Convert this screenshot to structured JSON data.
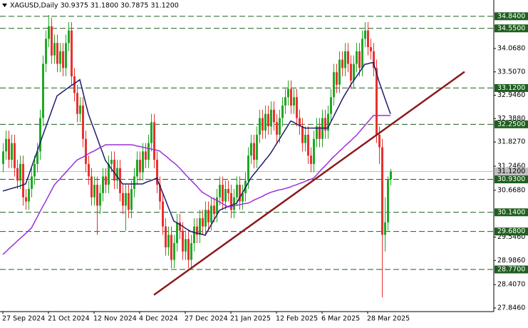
{
  "chart_data": {
    "type": "candlestick",
    "title": "XAGUSD,Daily  30.9375 31.1800 30.7875 31.1200",
    "categories": [
      "27 Sep 2024",
      null,
      null,
      null,
      null,
      null,
      null,
      null,
      null,
      null,
      null,
      null,
      null,
      null,
      null,
      null,
      "21 Oct 2024",
      null,
      null,
      null,
      null,
      null,
      null,
      null,
      null,
      null,
      null,
      null,
      null,
      null,
      null,
      null,
      "12 Nov 2024",
      null,
      null,
      null,
      null,
      null,
      null,
      null,
      null,
      null,
      null,
      null,
      null,
      null,
      null,
      null,
      "4 Dec 2024",
      null,
      null,
      null,
      null,
      null,
      null,
      null,
      null,
      null,
      null,
      null,
      null,
      null,
      null,
      null,
      "27 Dec 2024",
      null,
      null,
      null,
      null,
      null,
      null,
      null,
      null,
      null,
      null,
      null,
      null,
      null,
      null,
      null,
      "21 Jan 2025",
      null,
      null,
      null,
      null,
      null,
      null,
      null,
      null,
      null,
      null,
      null,
      null,
      null,
      null,
      null,
      "12 Feb 2025",
      null,
      null,
      null,
      null,
      null,
      null,
      null,
      null,
      null,
      null,
      null,
      null,
      null,
      null,
      null,
      "6 Mar 2025",
      null,
      null,
      null,
      null,
      null,
      null,
      null,
      null,
      null,
      null,
      null,
      null,
      null,
      null,
      null,
      "28 Mar 2025",
      null,
      null,
      null,
      null,
      null,
      null,
      null,
      null
    ],
    "open": [
      31.3,
      31.6,
      31.9,
      31.4,
      31.8,
      31.2,
      30.9,
      31.3,
      30.5,
      30.4,
      30.7,
      31,
      31.3,
      31.6,
      32.4,
      33.7,
      34.3,
      34.6,
      33.9,
      34.2,
      33.7,
      34,
      33.6,
      34.2,
      34.5,
      33.4,
      33,
      32.5,
      32.7,
      31.9,
      31.3,
      31,
      30.5,
      30.8,
      30.3,
      30.6,
      31,
      30.8,
      31.3,
      31.4,
      30.9,
      31.2,
      30.6,
      30.3,
      30.6,
      30.2,
      30.7,
      31,
      31.4,
      31.1,
      31.6,
      31.4,
      31.8,
      32.3,
      31.4,
      30.8,
      30.4,
      29.8,
      29.3,
      29.6,
      29,
      29.4,
      29.9,
      29.7,
      29.2,
      29.5,
      29,
      29.4,
      29.8,
      29.6,
      30,
      29.8,
      30.2,
      29.9,
      30.3,
      30.1,
      30.5,
      30.8,
      30.4,
      30.7,
      30.6,
      30.2,
      30.5,
      30.8,
      30.4,
      30.6,
      30.9,
      31.5,
      31.8,
      31.4,
      32,
      32.4,
      32.1,
      32.5,
      32.2,
      32.6,
      32.3,
      32,
      32.4,
      32.7,
      32.9,
      33.1,
      32.7,
      32.9,
      32.4,
      32.2,
      31.8,
      32,
      31.5,
      31.3,
      31.9,
      32.2,
      31.9,
      32.4,
      32.1,
      32.5,
      32.9,
      33.5,
      33.2,
      33.8,
      33.6,
      34,
      33.7,
      33.3,
      33.7,
      34,
      33.6,
      34.3,
      34.5,
      34.1,
      34,
      33.6,
      32,
      31.7,
      29.6,
      29.9,
      30.9375
    ],
    "high": [
      31.8,
      32.1,
      32.1,
      32,
      32,
      31.4,
      31.5,
      31.5,
      30.7,
      30.9,
      31.2,
      31.5,
      31.8,
      32.6,
      33.9,
      34.5,
      34.87,
      34.8,
      34.4,
      34.4,
      34.2,
      34.2,
      34.4,
      34.7,
      34.7,
      33.6,
      33.2,
      32.9,
      32.9,
      32.1,
      31.5,
      31.2,
      31,
      31,
      30.8,
      31.2,
      31.2,
      31.5,
      31.6,
      31.6,
      31.4,
      31.4,
      30.8,
      30.8,
      30.8,
      30.9,
      31.2,
      31.6,
      31.6,
      31.8,
      31.8,
      32,
      32.5,
      32.5,
      31.6,
      31,
      30.6,
      30,
      29.8,
      29.8,
      29.6,
      30.1,
      30.1,
      29.9,
      29.7,
      29.7,
      29.6,
      30,
      30,
      30.2,
      30.2,
      30.4,
      30.4,
      30.5,
      30.5,
      30.7,
      31,
      31,
      30.9,
      30.9,
      30.8,
      30.7,
      31,
      31,
      30.8,
      31.1,
      31.7,
      32,
      32,
      32.2,
      32.6,
      32.6,
      32.7,
      32.7,
      32.8,
      32.8,
      32.5,
      32.6,
      32.9,
      33.1,
      33.3,
      33.3,
      33.1,
      33.1,
      32.6,
      32.4,
      32.2,
      32.2,
      31.7,
      32.1,
      32.4,
      32.4,
      32.6,
      32.6,
      32.7,
      33.1,
      33.7,
      33.7,
      34,
      34,
      34.2,
      34.2,
      33.9,
      33.9,
      34.2,
      34.2,
      34.5,
      34.7,
      34.7,
      34.3,
      34.2,
      33.8,
      32.2,
      31.9,
      30.5,
      31,
      31.18
    ],
    "low": [
      31.1,
      31.4,
      31.2,
      31.2,
      31,
      30.7,
      30.7,
      30.3,
      30.2,
      30.2,
      30.5,
      30.8,
      31.1,
      31.4,
      32.2,
      33.5,
      34.1,
      33.7,
      33.7,
      33.5,
      33.5,
      33.4,
      33.4,
      34,
      33.2,
      32.8,
      32.3,
      32.3,
      31.7,
      31.1,
      30.8,
      30.3,
      30.3,
      29.6,
      30.1,
      30.4,
      30.6,
      30.6,
      31.1,
      30.7,
      30.7,
      30.4,
      30.1,
      29.7,
      30,
      30,
      30.5,
      30.8,
      30.9,
      30.9,
      31.2,
      31.2,
      31.6,
      31.2,
      30.6,
      30.2,
      29.6,
      29.1,
      29.1,
      28.8,
      28.8,
      29.2,
      29.5,
      29,
      29,
      28.8,
      28.8,
      29.2,
      29.4,
      29.4,
      29.6,
      29.6,
      29.7,
      29.7,
      29.9,
      29.9,
      30.3,
      30.2,
      30.2,
      30.4,
      30,
      30,
      30.3,
      30.2,
      30.2,
      30.4,
      30.7,
      31.3,
      31.2,
      31.2,
      31.8,
      31.9,
      31.9,
      32,
      32,
      32.1,
      31.8,
      31.8,
      32.2,
      32.5,
      32.7,
      32.5,
      32.5,
      32.2,
      32,
      31.6,
      31.6,
      31.3,
      31.1,
      31.1,
      31.7,
      31.7,
      31.7,
      31.9,
      31.9,
      32.3,
      32.7,
      33,
      33,
      33.4,
      33.4,
      33.5,
      33.1,
      33.1,
      33.5,
      33.4,
      33.4,
      34.1,
      33.9,
      33.8,
      33.4,
      31.8,
      31.3,
      28.1,
      29.2,
      29.7,
      30.7875
    ],
    "close": [
      31.6,
      31.9,
      31.4,
      31.8,
      31.2,
      30.9,
      31.3,
      30.5,
      30.4,
      30.7,
      31,
      31.3,
      31.6,
      32.4,
      33.7,
      34.3,
      34.6,
      33.9,
      34.2,
      33.7,
      34,
      33.6,
      34.2,
      34.5,
      33.4,
      33,
      32.5,
      32.7,
      31.9,
      31.3,
      31,
      30.5,
      30.8,
      30.3,
      30.6,
      31,
      30.8,
      31.3,
      31.4,
      30.9,
      31.2,
      30.6,
      30.3,
      30.6,
      30.2,
      30.7,
      31,
      31.4,
      31.1,
      31.6,
      31.4,
      31.8,
      32.3,
      31.4,
      30.8,
      30.4,
      29.8,
      29.3,
      29.6,
      29,
      29.4,
      29.9,
      29.7,
      29.2,
      29.5,
      29,
      29.4,
      29.8,
      29.6,
      30,
      29.8,
      30.2,
      29.9,
      30.3,
      30.1,
      30.5,
      30.8,
      30.4,
      30.7,
      30.6,
      30.2,
      30.5,
      30.8,
      30.4,
      30.6,
      30.9,
      31.5,
      31.8,
      31.4,
      32,
      32.4,
      32.1,
      32.5,
      32.2,
      32.6,
      32.3,
      32,
      32.4,
      32.7,
      32.9,
      33.1,
      32.7,
      32.9,
      32.4,
      32.2,
      31.8,
      32,
      31.5,
      31.3,
      31.9,
      32.2,
      31.9,
      32.4,
      32.1,
      32.5,
      32.9,
      33.5,
      33.2,
      33.8,
      33.6,
      34,
      33.7,
      33.3,
      33.7,
      34,
      33.6,
      34.3,
      34.5,
      34.1,
      34,
      33.6,
      32,
      31.7,
      29.6,
      29.9,
      30.94,
      31.12
    ],
    "up_color": "#1fa824",
    "down_color": "#e8312f",
    "indicators": [
      {
        "color": "#1c1c6b",
        "values": [
          30.65,
          30.67,
          30.69,
          30.71,
          30.73,
          30.75,
          30.77,
          30.8,
          30.82,
          31.01,
          31.21,
          31.4,
          31.59,
          31.79,
          31.98,
          32.17,
          32.36,
          32.55,
          32.74,
          32.93,
          32.98,
          33.03,
          33.08,
          33.13,
          33.18,
          33.22,
          33.27,
          33.32,
          33.05,
          32.77,
          32.5,
          32.31,
          32.13,
          31.94,
          31.75,
          31.57,
          31.38,
          31.29,
          31.19,
          31.1,
          31.01,
          30.91,
          30.82,
          30.82,
          30.82,
          30.82,
          30.82,
          30.82,
          30.82,
          30.82,
          30.85,
          30.88,
          30.9,
          30.93,
          30.96,
          30.79,
          30.62,
          30.45,
          30.27,
          30.1,
          29.93,
          29.89,
          29.85,
          29.81,
          29.76,
          29.72,
          29.68,
          29.66,
          29.64,
          29.63,
          29.61,
          29.59,
          29.71,
          29.83,
          29.95,
          30.07,
          30.19,
          30.22,
          30.25,
          30.28,
          30.3,
          30.33,
          30.36,
          30.48,
          30.6,
          30.72,
          30.84,
          30.96,
          31.05,
          31.13,
          31.22,
          31.3,
          31.39,
          31.47,
          31.56,
          31.67,
          31.78,
          31.89,
          32,
          32.11,
          32.22,
          32.33,
          32.3,
          32.26,
          32.23,
          32.19,
          32.16,
          32.16,
          32.16,
          32.16,
          32.16,
          32.16,
          32.16,
          32.16,
          32.16,
          32.3,
          32.43,
          32.57,
          32.7,
          32.84,
          32.96,
          33.07,
          33.19,
          33.29,
          33.39,
          33.49,
          33.59,
          33.69,
          33.7,
          33.72,
          33.73,
          33.5,
          33.27,
          33.08,
          32.88,
          32.69,
          32.5
        ]
      },
      {
        "color": "#9b30d9",
        "values": [
          29.13,
          29.19,
          29.26,
          29.32,
          29.38,
          29.45,
          29.51,
          29.57,
          29.63,
          29.7,
          29.76,
          29.89,
          30.02,
          30.15,
          30.28,
          30.4,
          30.53,
          30.66,
          30.79,
          30.87,
          30.94,
          31.02,
          31.09,
          31.17,
          31.24,
          31.32,
          31.39,
          31.43,
          31.46,
          31.5,
          31.54,
          31.58,
          31.61,
          31.65,
          31.69,
          31.72,
          31.76,
          31.76,
          31.76,
          31.76,
          31.76,
          31.76,
          31.76,
          31.76,
          31.76,
          31.76,
          31.75,
          31.73,
          31.72,
          31.7,
          31.69,
          31.67,
          31.66,
          31.64,
          31.63,
          31.61,
          31.55,
          31.5,
          31.44,
          31.38,
          31.33,
          31.27,
          31.2,
          31.13,
          31.05,
          30.98,
          30.91,
          30.84,
          30.77,
          30.69,
          30.62,
          30.58,
          30.54,
          30.5,
          30.46,
          30.43,
          30.39,
          30.35,
          30.31,
          30.27,
          30.28,
          30.3,
          30.31,
          30.32,
          30.34,
          30.35,
          30.36,
          30.39,
          30.43,
          30.46,
          30.49,
          30.52,
          30.56,
          30.59,
          30.62,
          30.64,
          30.66,
          30.68,
          30.69,
          30.71,
          30.73,
          30.75,
          30.78,
          30.8,
          30.83,
          30.85,
          30.88,
          30.91,
          30.93,
          30.96,
          31.03,
          31.11,
          31.18,
          31.25,
          31.32,
          31.4,
          31.47,
          31.53,
          31.6,
          31.66,
          31.73,
          31.79,
          31.85,
          31.92,
          31.98,
          32.06,
          32.14,
          32.22,
          32.3,
          32.38,
          32.46,
          32.46,
          32.46,
          32.46,
          32.46,
          32.46,
          32.46
        ]
      }
    ],
    "trendline": {
      "color": "#8b1a1a",
      "x": [
        53,
        162
      ],
      "values": [
        28.16,
        33.51
      ]
    },
    "ylim": [
      27.76,
      35.23
    ],
    "yticks": [
      {
        "value": 34.068,
        "label": "34.0680"
      },
      {
        "value": 33.507,
        "label": "33.5070"
      },
      {
        "value": 32.946,
        "label": "32.9460"
      },
      {
        "value": 32.388,
        "label": "32.3880"
      },
      {
        "value": 31.827,
        "label": "31.8270"
      },
      {
        "value": 31.246,
        "label": "31.2460"
      },
      {
        "value": 30.668,
        "label": "30.6680"
      },
      {
        "value": 29.546,
        "label": "29.5460"
      },
      {
        "value": 28.986,
        "label": "28.9860"
      },
      {
        "value": 28.407,
        "label": "28.4070"
      },
      {
        "value": 27.846,
        "label": "27.8460"
      }
    ],
    "levels": [
      {
        "value": 34.84,
        "label": "34.8400"
      },
      {
        "value": 34.55,
        "label": "34.5500"
      },
      {
        "value": 33.12,
        "label": "33.1200"
      },
      {
        "value": 32.25,
        "label": "32.2500"
      },
      {
        "value": 30.93,
        "label": "30.9300"
      },
      {
        "value": 30.14,
        "label": "30.1400"
      },
      {
        "value": 29.68,
        "label": "29.6800"
      },
      {
        "value": 28.77,
        "label": "28.7700"
      }
    ],
    "level_color": "#1f5f1f",
    "last_price": {
      "value": 31.12,
      "label": "31.1200"
    }
  }
}
